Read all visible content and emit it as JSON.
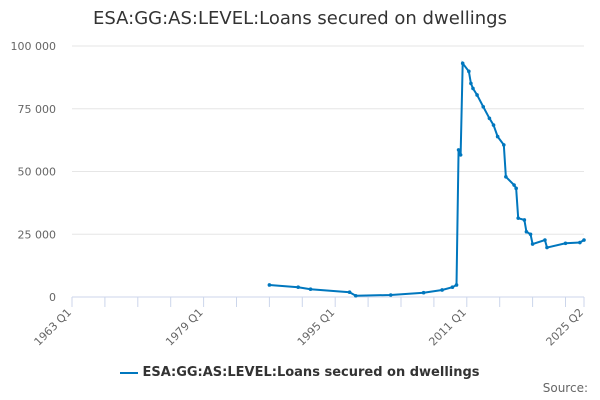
{
  "chart_data": {
    "type": "line",
    "title": "ESA:GG:AS:LEVEL:Loans secured on dwellings",
    "xlabel": "",
    "ylabel": "",
    "x_tick_labels": [
      "1963 Q1",
      "1979 Q1",
      "1995 Q1",
      "2011 Q1",
      "2025 Q2"
    ],
    "y_tick_labels": [
      "0",
      "25 000",
      "50 000",
      "75 000",
      "100 000"
    ],
    "y_ticks": [
      0,
      25000,
      50000,
      75000,
      100000
    ],
    "xlim": [
      "1963 Q1",
      "2025 Q2"
    ],
    "ylim": [
      0,
      100000
    ],
    "grid": "horizontal",
    "legend_position": "bottom",
    "color": "#0077be",
    "series": [
      {
        "name": "ESA:GG:AS:LEVEL:Loans secured on dwellings",
        "points": [
          [
            "1987 Q1",
            4800
          ],
          [
            "1990 Q3",
            3900
          ],
          [
            "1992 Q1",
            3100
          ],
          [
            "1996 Q4",
            1900
          ],
          [
            "1997 Q3",
            500
          ],
          [
            "2001 Q4",
            800
          ],
          [
            "2005 Q4",
            1700
          ],
          [
            "2008 Q1",
            2800
          ],
          [
            "2009 Q2",
            3900
          ],
          [
            "2009 Q4",
            4800
          ],
          [
            "2010 Q1",
            58600
          ],
          [
            "2010 Q2",
            56600
          ],
          [
            "2010 Q3",
            93100
          ],
          [
            "2011 Q2",
            89900
          ],
          [
            "2011 Q3",
            85100
          ],
          [
            "2011 Q4",
            83100
          ],
          [
            "2012 Q2",
            80500
          ],
          [
            "2013 Q1",
            75800
          ],
          [
            "2013 Q4",
            71200
          ],
          [
            "2014 Q2",
            68500
          ],
          [
            "2014 Q4",
            63900
          ],
          [
            "2015 Q3",
            60600
          ],
          [
            "2015 Q4",
            47900
          ],
          [
            "2016 Q4",
            44600
          ],
          [
            "2017 Q1",
            43300
          ],
          [
            "2017 Q2",
            31400
          ],
          [
            "2018 Q1",
            30700
          ],
          [
            "2018 Q2",
            26000
          ],
          [
            "2018 Q4",
            25000
          ],
          [
            "2019 Q1",
            21100
          ],
          [
            "2020 Q3",
            22700
          ],
          [
            "2020 Q4",
            19700
          ],
          [
            "2023 Q1",
            21400
          ],
          [
            "2024 Q4",
            21700
          ],
          [
            "2025 Q2",
            22700
          ]
        ]
      }
    ]
  },
  "source_label": "Source:"
}
